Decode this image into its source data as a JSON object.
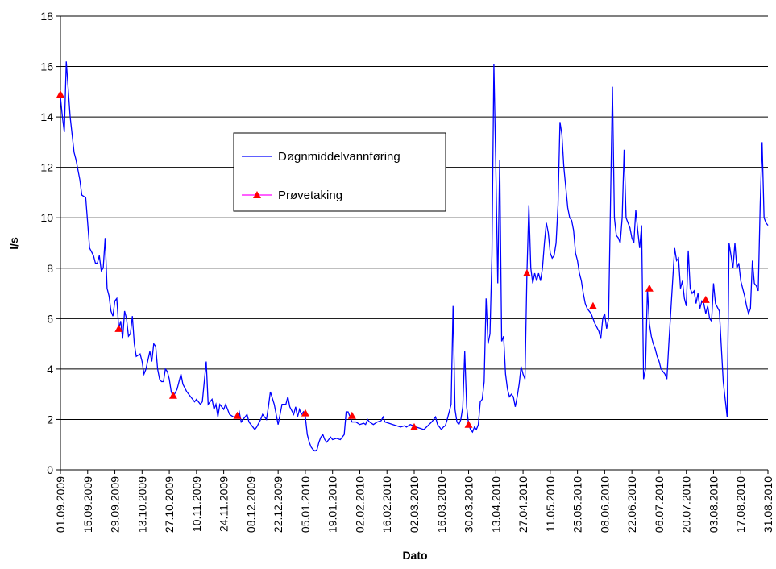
{
  "chart_data": {
    "type": "line",
    "xlabel": "Dato",
    "ylabel": "l/s",
    "xlim": [
      "01.09.2009",
      "31.08.2010"
    ],
    "xticks": [
      "01.09.2009",
      "15.09.2009",
      "29.09.2009",
      "13.10.2009",
      "27.10.2009",
      "10.11.2009",
      "24.11.2009",
      "08.12.2009",
      "22.12.2009",
      "05.01.2010",
      "19.01.2010",
      "02.02.2010",
      "16.02.2010",
      "02.03.2010",
      "16.03.2010",
      "30.03.2010",
      "13.04.2010",
      "27.04.2010",
      "11.05.2010",
      "25.05.2010",
      "08.06.2010",
      "22.06.2010",
      "06.07.2010",
      "20.07.2010",
      "03.08.2010",
      "17.08.2010",
      "31.08.2010"
    ],
    "ylim": [
      0,
      18
    ],
    "yticks": [
      0,
      2,
      4,
      6,
      8,
      10,
      12,
      14,
      16,
      18
    ],
    "grid": true,
    "series": [
      {
        "name": "Døgnmiddelvannføring",
        "color": "#0000ff",
        "marker": "none",
        "x": [
          "01.09.2009",
          "02.09.2009",
          "03.09.2009",
          "04.09.2009",
          "06.09.2009",
          "08.09.2009",
          "09.09.2009",
          "11.09.2009",
          "12.09.2009",
          "14.09.2009",
          "15.09.2009",
          "16.09.2009",
          "18.09.2009",
          "19.09.2009",
          "20.09.2009",
          "21.09.2009",
          "22.09.2009",
          "23.09.2009",
          "24.09.2009",
          "25.09.2009",
          "26.09.2009",
          "27.09.2009",
          "28.09.2009",
          "29.09.2009",
          "30.09.2009",
          "01.10.2009",
          "02.10.2009",
          "03.10.2009",
          "04.10.2009",
          "05.10.2009",
          "06.10.2009",
          "07.10.2009",
          "08.10.2009",
          "09.10.2009",
          "10.10.2009",
          "12.10.2009",
          "13.10.2009",
          "14.10.2009",
          "15.10.2009",
          "17.10.2009",
          "18.10.2009",
          "19.10.2009",
          "20.10.2009",
          "21.10.2009",
          "22.10.2009",
          "23.10.2009",
          "24.10.2009",
          "25.10.2009",
          "26.10.2009",
          "27.10.2009",
          "28.10.2009",
          "29.10.2009",
          "31.10.2009",
          "02.11.2009",
          "03.11.2009",
          "05.11.2009",
          "07.11.2009",
          "09.11.2009",
          "10.11.2009",
          "12.11.2009",
          "13.11.2009",
          "15.11.2009",
          "16.11.2009",
          "18.11.2009",
          "19.11.2009",
          "20.11.2009",
          "21.11.2009",
          "22.11.2009",
          "24.11.2009",
          "25.11.2009",
          "27.11.2009",
          "29.11.2009",
          "01.12.2009",
          "02.12.2009",
          "03.12.2009",
          "05.12.2009",
          "06.12.2009",
          "07.12.2009",
          "09.12.2009",
          "10.12.2009",
          "11.12.2009",
          "13.12.2009",
          "14.12.2009",
          "16.12.2009",
          "17.12.2009",
          "18.12.2009",
          "20.12.2009",
          "22.12.2009",
          "24.12.2009",
          "26.12.2009",
          "27.12.2009",
          "28.12.2009",
          "30.12.2009",
          "31.12.2009",
          "01.01.2010",
          "02.01.2010",
          "03.01.2010",
          "04.01.2010",
          "05.01.2010",
          "06.01.2010",
          "07.01.2010",
          "08.01.2010",
          "09.01.2010",
          "10.01.2010",
          "11.01.2010",
          "12.01.2010",
          "13.01.2010",
          "14.01.2010",
          "15.01.2010",
          "16.01.2010",
          "17.01.2010",
          "18.01.2010",
          "19.01.2010",
          "21.01.2010",
          "23.01.2010",
          "25.01.2010",
          "26.01.2010",
          "27.01.2010",
          "28.01.2010",
          "29.01.2010",
          "31.01.2010",
          "02.02.2010",
          "04.02.2010",
          "05.02.2010",
          "06.02.2010",
          "07.02.2010",
          "09.02.2010",
          "11.02.2010",
          "13.02.2010",
          "14.02.2010",
          "15.02.2010",
          "17.02.2010",
          "19.02.2010",
          "21.02.2010",
          "23.02.2010",
          "25.02.2010",
          "26.02.2010",
          "28.02.2010",
          "03.03.2010",
          "05.03.2010",
          "07.03.2010",
          "09.03.2010",
          "11.03.2010",
          "13.03.2010",
          "14.03.2010",
          "16.03.2010",
          "17.03.2010",
          "18.03.2010",
          "19.03.2010",
          "20.03.2010",
          "21.03.2010",
          "22.03.2010",
          "23.03.2010",
          "24.03.2010",
          "25.03.2010",
          "26.03.2010",
          "27.03.2010",
          "28.03.2010",
          "29.03.2010",
          "30.03.2010",
          "31.03.2010",
          "01.04.2010",
          "02.04.2010",
          "03.04.2010",
          "04.04.2010",
          "05.04.2010",
          "06.04.2010",
          "07.04.2010",
          "08.04.2010",
          "09.04.2010",
          "10.04.2010",
          "11.04.2010",
          "12.04.2010",
          "13.04.2010",
          "14.04.2010",
          "15.04.2010",
          "16.04.2010",
          "17.04.2010",
          "18.04.2010",
          "19.04.2010",
          "20.04.2010",
          "21.04.2010",
          "22.04.2010",
          "23.04.2010",
          "24.04.2010",
          "25.04.2010",
          "26.04.2010",
          "27.04.2010",
          "28.04.2010",
          "29.04.2010",
          "30.04.2010",
          "01.05.2010",
          "02.05.2010",
          "03.05.2010",
          "04.05.2010",
          "05.05.2010",
          "06.05.2010",
          "07.05.2010",
          "08.05.2010",
          "09.05.2010",
          "10.05.2010",
          "11.05.2010",
          "12.05.2010",
          "13.05.2010",
          "14.05.2010",
          "15.05.2010",
          "16.05.2010",
          "17.05.2010",
          "18.05.2010",
          "19.05.2010",
          "20.05.2010",
          "21.05.2010",
          "22.05.2010",
          "23.05.2010",
          "24.05.2010",
          "25.05.2010",
          "26.05.2010",
          "27.05.2010",
          "28.05.2010",
          "29.05.2010",
          "30.05.2010",
          "01.06.2010",
          "03.06.2010",
          "05.06.2010",
          "06.06.2010",
          "07.06.2010",
          "08.06.2010",
          "09.06.2010",
          "10.06.2010",
          "12.06.2010",
          "13.06.2010",
          "14.06.2010",
          "15.06.2010",
          "16.06.2010",
          "17.06.2010",
          "18.06.2010",
          "19.06.2010",
          "20.06.2010",
          "21.06.2010",
          "22.06.2010",
          "23.06.2010",
          "24.06.2010",
          "25.06.2010",
          "26.06.2010",
          "27.06.2010",
          "28.06.2010",
          "29.06.2010",
          "30.06.2010",
          "01.07.2010",
          "02.07.2010",
          "03.07.2010",
          "04.07.2010",
          "05.07.2010",
          "06.07.2010",
          "07.07.2010",
          "08.07.2010",
          "09.07.2010",
          "10.07.2010",
          "11.07.2010",
          "14.07.2010",
          "15.07.2010",
          "16.07.2010",
          "17.07.2010",
          "18.07.2010",
          "19.07.2010",
          "20.07.2010",
          "21.07.2010",
          "22.07.2010",
          "23.07.2010",
          "24.07.2010",
          "25.07.2010",
          "26.07.2010",
          "27.07.2010",
          "28.07.2010",
          "29.07.2010",
          "30.07.2010",
          "31.07.2010",
          "01.08.2010",
          "02.08.2010",
          "03.08.2010",
          "04.08.2010",
          "06.08.2010",
          "08.08.2010",
          "10.08.2010",
          "11.08.2010",
          "12.08.2010",
          "13.08.2010",
          "14.08.2010",
          "15.08.2010",
          "16.08.2010",
          "17.08.2010",
          "18.08.2010",
          "19.08.2010",
          "20.08.2010",
          "21.08.2010",
          "22.08.2010",
          "23.08.2010",
          "24.08.2010",
          "25.08.2010",
          "26.08.2010",
          "27.08.2010",
          "28.08.2010",
          "29.08.2010",
          "30.08.2010",
          "31.08.2010"
        ],
        "values": [
          14.8,
          14.0,
          13.4,
          16.2,
          14.0,
          12.6,
          12.3,
          11.5,
          10.9,
          10.8,
          9.8,
          8.8,
          8.5,
          8.2,
          8.2,
          8.5,
          7.9,
          8.0,
          9.2,
          7.2,
          6.9,
          6.3,
          6.1,
          6.7,
          6.8,
          5.6,
          5.9,
          5.2,
          6.3,
          6.0,
          5.3,
          5.4,
          6.1,
          5.0,
          4.5,
          4.6,
          4.3,
          3.8,
          4.0,
          4.7,
          4.3,
          5.0,
          4.9,
          4.0,
          3.6,
          3.5,
          3.5,
          4.0,
          3.9,
          3.6,
          3.1,
          2.9,
          3.2,
          3.8,
          3.4,
          3.1,
          2.9,
          2.7,
          2.8,
          2.6,
          2.7,
          4.3,
          2.6,
          2.8,
          2.4,
          2.6,
          2.1,
          2.6,
          2.4,
          2.6,
          2.2,
          2.1,
          2.1,
          2.3,
          1.9,
          2.1,
          2.2,
          1.9,
          1.7,
          1.6,
          1.7,
          2.0,
          2.2,
          2.0,
          2.5,
          3.1,
          2.6,
          1.8,
          2.6,
          2.6,
          2.9,
          2.5,
          2.2,
          2.5,
          2.1,
          2.4,
          2.2,
          2.3,
          2.1,
          1.4,
          1.1,
          0.9,
          0.8,
          0.75,
          0.8,
          1.1,
          1.3,
          1.4,
          1.2,
          1.1,
          1.2,
          1.3,
          1.2,
          1.25,
          1.2,
          1.4,
          2.3,
          2.3,
          2.1,
          1.9,
          1.9,
          1.8,
          1.85,
          1.8,
          2.0,
          1.9,
          1.8,
          1.9,
          1.95,
          2.1,
          1.9,
          1.85,
          1.8,
          1.75,
          1.7,
          1.75,
          1.7,
          1.8,
          1.7,
          1.65,
          1.6,
          1.75,
          1.9,
          2.1,
          1.8,
          1.6,
          1.7,
          1.75,
          2.0,
          2.3,
          2.6,
          6.5,
          2.4,
          1.9,
          1.8,
          2.0,
          2.5,
          4.7,
          2.5,
          1.8,
          1.6,
          1.5,
          1.7,
          1.6,
          1.8,
          2.7,
          2.8,
          3.5,
          6.8,
          5.0,
          5.4,
          8.5,
          16.1,
          12.0,
          7.4,
          12.3,
          5.1,
          5.3,
          3.8,
          3.2,
          2.9,
          3.0,
          2.9,
          2.5,
          2.9,
          3.4,
          4.1,
          3.8,
          3.6,
          7.8,
          10.5,
          8.0,
          7.4,
          7.8,
          7.5,
          7.8,
          7.5,
          8.0,
          9.0,
          9.8,
          9.4,
          8.6,
          8.4,
          8.5,
          9.0,
          10.5,
          13.8,
          13.3,
          12.0,
          11.2,
          10.4,
          10.0,
          9.9,
          9.5,
          8.6,
          8.3,
          7.8,
          7.5,
          7.0,
          6.6,
          6.4,
          6.2,
          5.8,
          5.5,
          5.2,
          6.0,
          6.2,
          5.6,
          6.0,
          15.2,
          10.0,
          9.3,
          9.2,
          9.0,
          10.0,
          12.7,
          10.0,
          9.8,
          9.6,
          9.2,
          9.0,
          10.3,
          9.5,
          8.8,
          9.7,
          3.6,
          4.0,
          7.2,
          5.8,
          5.3,
          5.0,
          4.8,
          4.5,
          4.3,
          4.0,
          3.9,
          3.8,
          3.6,
          5.0,
          8.8,
          8.3,
          8.4,
          7.2,
          7.5,
          6.8,
          6.5,
          8.7,
          7.2,
          7.0,
          7.1,
          6.6,
          7.0,
          6.4,
          6.7,
          6.6,
          6.2,
          6.5,
          6.0,
          5.9,
          7.4,
          6.6,
          6.3,
          3.5,
          2.1,
          9.0,
          8.5,
          8.0,
          9.0,
          8.0,
          8.2,
          7.5,
          7.2,
          6.9,
          6.5,
          6.2,
          6.4,
          8.3,
          7.4,
          7.3,
          7.1,
          10.5,
          13.0,
          10.0,
          9.8,
          9.7
        ]
      },
      {
        "name": "Prøvetaking",
        "color": "#ff0000",
        "line_color": "#ff00ff",
        "marker": "triangle",
        "x": [
          "01.09.2009",
          "01.10.2009",
          "29.10.2009",
          "01.12.2009",
          "05.01.2010",
          "29.01.2010",
          "02.03.2010",
          "30.03.2010",
          "29.04.2010",
          "02.06.2010",
          "01.07.2010",
          "30.07.2010"
        ],
        "values": [
          14.9,
          5.6,
          2.95,
          2.15,
          2.25,
          2.15,
          1.7,
          1.8,
          7.8,
          6.5,
          7.2,
          6.75
        ]
      }
    ]
  }
}
